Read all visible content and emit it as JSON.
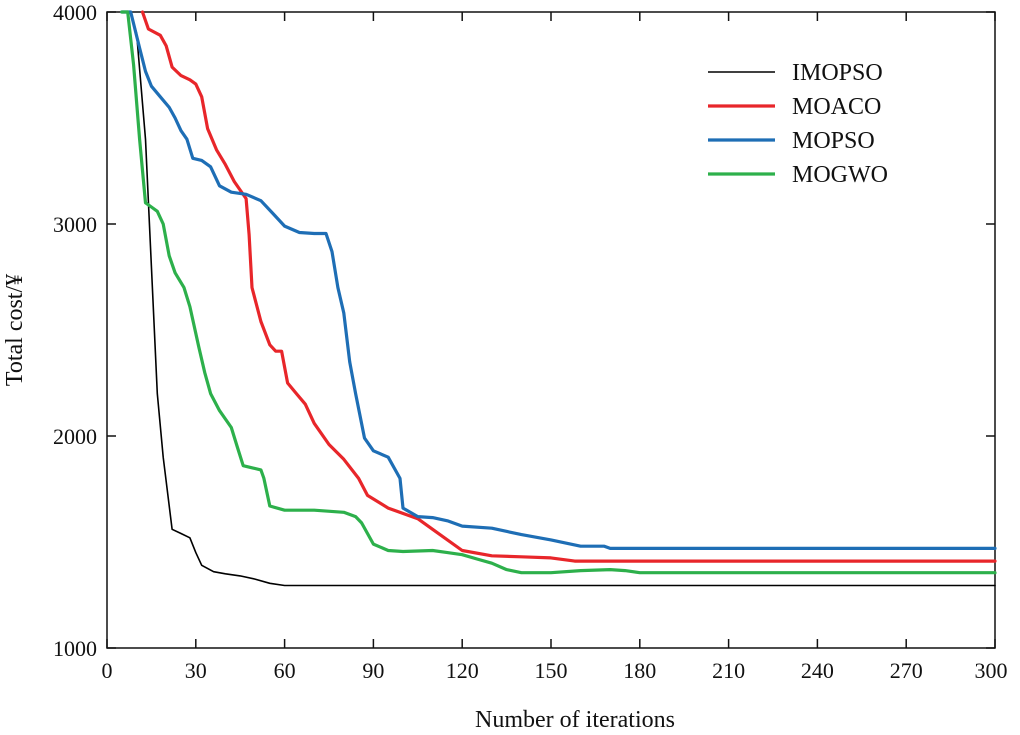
{
  "chart_data": {
    "type": "line",
    "title": "",
    "xlabel": "Number of iterations",
    "ylabel": "Total cost/¥",
    "xlim": [
      0,
      300
    ],
    "ylim": [
      1000,
      4000
    ],
    "x_ticks": [
      0,
      30,
      60,
      90,
      120,
      150,
      180,
      210,
      240,
      270,
      300
    ],
    "y_ticks": [
      1000,
      2000,
      3000,
      4000
    ],
    "grid": false,
    "legend_position": "top-right",
    "series": [
      {
        "name": "IMOPSO",
        "color": "#000000",
        "points": [
          [
            5,
            4000
          ],
          [
            8,
            4000
          ],
          [
            10,
            3900
          ],
          [
            13,
            3400
          ],
          [
            15,
            2800
          ],
          [
            17,
            2200
          ],
          [
            19,
            1900
          ],
          [
            22,
            1560
          ],
          [
            25,
            1540
          ],
          [
            28,
            1520
          ],
          [
            30,
            1450
          ],
          [
            32,
            1390
          ],
          [
            36,
            1360
          ],
          [
            40,
            1350
          ],
          [
            45,
            1340
          ],
          [
            50,
            1325
          ],
          [
            55,
            1305
          ],
          [
            60,
            1295
          ],
          [
            70,
            1295
          ],
          [
            100,
            1295
          ],
          [
            150,
            1295
          ],
          [
            200,
            1295
          ],
          [
            250,
            1295
          ],
          [
            300,
            1295
          ]
        ]
      },
      {
        "name": "MOACO",
        "color": "#e8262a",
        "points": [
          [
            12,
            4000
          ],
          [
            14,
            3920
          ],
          [
            18,
            3890
          ],
          [
            20,
            3840
          ],
          [
            22,
            3740
          ],
          [
            25,
            3700
          ],
          [
            28,
            3680
          ],
          [
            30,
            3660
          ],
          [
            32,
            3600
          ],
          [
            34,
            3450
          ],
          [
            37,
            3350
          ],
          [
            40,
            3280
          ],
          [
            43,
            3200
          ],
          [
            47,
            3120
          ],
          [
            48,
            2950
          ],
          [
            49,
            2700
          ],
          [
            52,
            2540
          ],
          [
            55,
            2430
          ],
          [
            57,
            2400
          ],
          [
            59,
            2400
          ],
          [
            61,
            2250
          ],
          [
            64,
            2200
          ],
          [
            67,
            2150
          ],
          [
            70,
            2060
          ],
          [
            75,
            1960
          ],
          [
            80,
            1890
          ],
          [
            85,
            1800
          ],
          [
            88,
            1720
          ],
          [
            95,
            1660
          ],
          [
            105,
            1610
          ],
          [
            110,
            1560
          ],
          [
            120,
            1460
          ],
          [
            130,
            1435
          ],
          [
            140,
            1430
          ],
          [
            150,
            1425
          ],
          [
            158,
            1410
          ],
          [
            170,
            1410
          ],
          [
            200,
            1410
          ],
          [
            250,
            1410
          ],
          [
            300,
            1410
          ]
        ]
      },
      {
        "name": "MOPSO",
        "color": "#1e6eb5",
        "points": [
          [
            5,
            4000
          ],
          [
            8,
            4000
          ],
          [
            11,
            3830
          ],
          [
            13,
            3720
          ],
          [
            15,
            3650
          ],
          [
            18,
            3600
          ],
          [
            21,
            3550
          ],
          [
            23,
            3500
          ],
          [
            25,
            3440
          ],
          [
            27,
            3400
          ],
          [
            29,
            3310
          ],
          [
            32,
            3300
          ],
          [
            35,
            3270
          ],
          [
            38,
            3180
          ],
          [
            42,
            3150
          ],
          [
            47,
            3140
          ],
          [
            52,
            3110
          ],
          [
            56,
            3050
          ],
          [
            60,
            2990
          ],
          [
            65,
            2960
          ],
          [
            70,
            2955
          ],
          [
            74,
            2955
          ],
          [
            76,
            2870
          ],
          [
            78,
            2700
          ],
          [
            80,
            2580
          ],
          [
            82,
            2350
          ],
          [
            84,
            2200
          ],
          [
            87,
            1990
          ],
          [
            90,
            1930
          ],
          [
            95,
            1900
          ],
          [
            99,
            1800
          ],
          [
            100,
            1660
          ],
          [
            105,
            1620
          ],
          [
            110,
            1615
          ],
          [
            115,
            1600
          ],
          [
            120,
            1575
          ],
          [
            130,
            1565
          ],
          [
            140,
            1535
          ],
          [
            150,
            1510
          ],
          [
            160,
            1480
          ],
          [
            168,
            1480
          ],
          [
            170,
            1470
          ],
          [
            200,
            1470
          ],
          [
            250,
            1470
          ],
          [
            300,
            1470
          ]
        ]
      },
      {
        "name": "MOGWO",
        "color": "#2db04b",
        "points": [
          [
            5,
            4000
          ],
          [
            7,
            4000
          ],
          [
            9,
            3750
          ],
          [
            11,
            3400
          ],
          [
            13,
            3100
          ],
          [
            15,
            3080
          ],
          [
            17,
            3060
          ],
          [
            19,
            3000
          ],
          [
            21,
            2850
          ],
          [
            23,
            2770
          ],
          [
            26,
            2700
          ],
          [
            28,
            2610
          ],
          [
            31,
            2420
          ],
          [
            33,
            2300
          ],
          [
            35,
            2200
          ],
          [
            38,
            2120
          ],
          [
            42,
            2040
          ],
          [
            44,
            1950
          ],
          [
            46,
            1860
          ],
          [
            49,
            1850
          ],
          [
            52,
            1840
          ],
          [
            53,
            1800
          ],
          [
            55,
            1670
          ],
          [
            60,
            1650
          ],
          [
            70,
            1650
          ],
          [
            80,
            1640
          ],
          [
            84,
            1620
          ],
          [
            86,
            1590
          ],
          [
            88,
            1540
          ],
          [
            90,
            1490
          ],
          [
            95,
            1460
          ],
          [
            100,
            1455
          ],
          [
            110,
            1460
          ],
          [
            115,
            1450
          ],
          [
            120,
            1440
          ],
          [
            125,
            1420
          ],
          [
            130,
            1400
          ],
          [
            135,
            1370
          ],
          [
            140,
            1355
          ],
          [
            150,
            1355
          ],
          [
            160,
            1365
          ],
          [
            170,
            1370
          ],
          [
            175,
            1365
          ],
          [
            180,
            1355
          ],
          [
            200,
            1355
          ],
          [
            250,
            1355
          ],
          [
            300,
            1355
          ]
        ]
      }
    ]
  }
}
